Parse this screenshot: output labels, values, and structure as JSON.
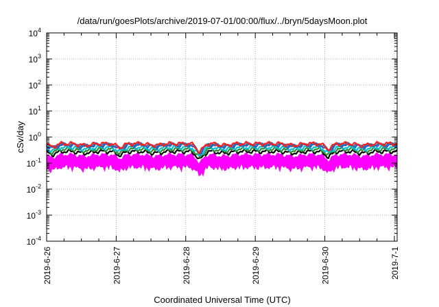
{
  "chart_data": {
    "type": "line",
    "title": "/data/run/goesPlots/archive/2019-07-01/00:00/flux/../bryn/5daysMoon.plot",
    "xlabel": "Coordinated Universal Time (UTC)",
    "ylabel": "cSv/day",
    "y_scale": "log",
    "ylim_exponents": [
      -4,
      4
    ],
    "y_ticks": [
      {
        "base": "10",
        "exp": "-4"
      },
      {
        "base": "10",
        "exp": "-3"
      },
      {
        "base": "10",
        "exp": "-2"
      },
      {
        "base": "10",
        "exp": "-1"
      },
      {
        "base": "10",
        "exp": "0"
      },
      {
        "base": "10",
        "exp": "1"
      },
      {
        "base": "10",
        "exp": "2"
      },
      {
        "base": "10",
        "exp": "3"
      },
      {
        "base": "10",
        "exp": "4"
      }
    ],
    "x_ticks": [
      "2019-6-26",
      "2019-6-27",
      "2019-6-28",
      "2019-6-29",
      "2019-6-30",
      "2019-7-1"
    ],
    "xlim_days": [
      0,
      5.04
    ],
    "grid": true,
    "dips": [
      {
        "day": 1.05,
        "depth": 0.3
      },
      {
        "day": 2.2,
        "depth": 0.55
      },
      {
        "day": 4.05,
        "depth": 0.4
      },
      {
        "day": 0.08,
        "depth": 0.25
      }
    ],
    "series": [
      {
        "color": "#ff00ff",
        "base": 0.21,
        "fill_low": 0.08,
        "kind": "band"
      },
      {
        "color": "#000000",
        "base": 0.28
      },
      {
        "color": "#2e8b2e",
        "base": 0.34
      },
      {
        "color": "#00c0d0",
        "base": 0.4
      },
      {
        "color": "#1f5fd0",
        "base": 0.5
      },
      {
        "color": "#3a6ea5",
        "base": 0.52
      },
      {
        "color": "#ff2020",
        "base": 0.56
      }
    ]
  }
}
